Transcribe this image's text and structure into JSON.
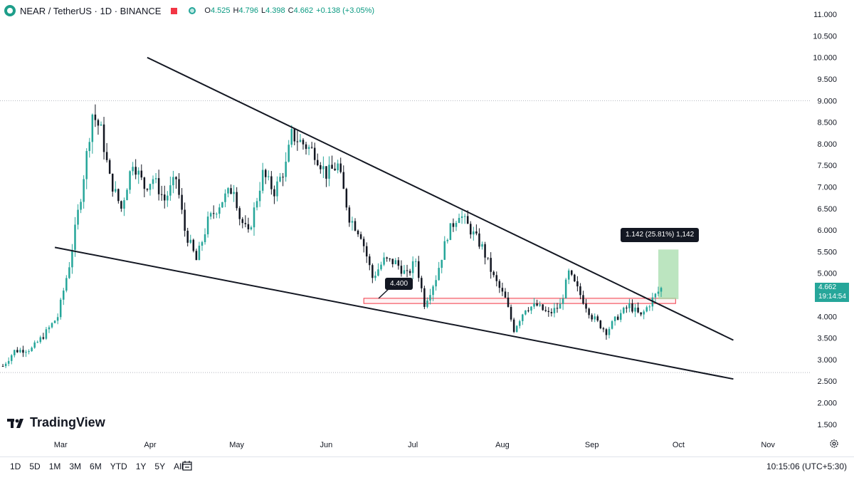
{
  "header": {
    "symbol": "NEAR / TetherUS · 1D · BINANCE",
    "open_label": "O",
    "open": "4.525",
    "high_label": "H",
    "high": "4.796",
    "low_label": "L",
    "low": "4.398",
    "close_label": "C",
    "close": "4.662",
    "change": "+0.138 (+3.05%)"
  },
  "colors": {
    "up": "#26a69a",
    "down": "#131722",
    "zone": "#f23645",
    "measure": "#a5dcab"
  },
  "brand": "TradingView",
  "price_tag": {
    "price": "4.662",
    "countdown": "19:14:54"
  },
  "annotations": {
    "measure_label": "1.142 (25.81%) 1,142",
    "support_label": "4.400"
  },
  "bottom_bar": {
    "ranges": [
      "1D",
      "5D",
      "1M",
      "3M",
      "6M",
      "YTD",
      "1Y",
      "5Y",
      "All"
    ],
    "clock": "10:15:06 (UTC+5:30)"
  },
  "chart_data": {
    "type": "candlestick",
    "y_axis": {
      "range": [
        1.2,
        11.2
      ],
      "ticks": [
        "11.000",
        "10.500",
        "10.000",
        "9.500",
        "9.000",
        "8.500",
        "8.000",
        "7.500",
        "7.000",
        "6.500",
        "6.000",
        "5.500",
        "5.000",
        "4.500",
        "4.000",
        "3.500",
        "3.000",
        "2.500",
        "2.000",
        "1.500"
      ],
      "tick_values": [
        11,
        10.5,
        10,
        9.5,
        9,
        8.5,
        8,
        7.5,
        7,
        6.5,
        6,
        5.5,
        5,
        4.5,
        4,
        3.5,
        3,
        2.5,
        2,
        1.5
      ]
    },
    "x_axis": {
      "range": [
        "2024-02-09",
        "2024-11-16"
      ],
      "ticks": [
        "Mar",
        "Apr",
        "May",
        "Jun",
        "Jul",
        "Aug",
        "Sep",
        "Oct",
        "Nov"
      ],
      "tick_dates": [
        "2024-03-01",
        "2024-04-01",
        "2024-05-01",
        "2024-06-01",
        "2024-07-01",
        "2024-08-01",
        "2024-09-01",
        "2024-10-01",
        "2024-11-01"
      ]
    },
    "key_points": [
      [
        "2024-02-10",
        2.85
      ],
      [
        "2024-02-14",
        3.2
      ],
      [
        "2024-02-20",
        3.25
      ],
      [
        "2024-02-24",
        3.55
      ],
      [
        "2024-02-29",
        4.0
      ],
      [
        "2024-03-04",
        5.2
      ],
      [
        "2024-03-08",
        6.8
      ],
      [
        "2024-03-12",
        8.7
      ],
      [
        "2024-03-15",
        8.3
      ],
      [
        "2024-03-18",
        7.2
      ],
      [
        "2024-03-22",
        6.5
      ],
      [
        "2024-03-26",
        7.6
      ],
      [
        "2024-03-30",
        7.0
      ],
      [
        "2024-04-02",
        7.2
      ],
      [
        "2024-04-06",
        6.7
      ],
      [
        "2024-04-10",
        7.2
      ],
      [
        "2024-04-13",
        6.0
      ],
      [
        "2024-04-17",
        5.3
      ],
      [
        "2024-04-21",
        6.2
      ],
      [
        "2024-04-26",
        6.7
      ],
      [
        "2024-04-30",
        7.0
      ],
      [
        "2024-05-02",
        6.3
      ],
      [
        "2024-05-05",
        5.9
      ],
      [
        "2024-05-10",
        7.3
      ],
      [
        "2024-05-14",
        6.9
      ],
      [
        "2024-05-18",
        7.5
      ],
      [
        "2024-05-20",
        8.2
      ],
      [
        "2024-05-24",
        8.0
      ],
      [
        "2024-05-28",
        7.8
      ],
      [
        "2024-06-01",
        7.3
      ],
      [
        "2024-06-05",
        7.5
      ],
      [
        "2024-06-09",
        6.3
      ],
      [
        "2024-06-13",
        5.9
      ],
      [
        "2024-06-17",
        4.9
      ],
      [
        "2024-06-21",
        5.3
      ],
      [
        "2024-06-25",
        5.25
      ],
      [
        "2024-06-29",
        4.95
      ],
      [
        "2024-07-02",
        5.3
      ],
      [
        "2024-07-05",
        4.3
      ],
      [
        "2024-07-09",
        4.9
      ],
      [
        "2024-07-13",
        5.9
      ],
      [
        "2024-07-17",
        6.4
      ],
      [
        "2024-07-21",
        6.0
      ],
      [
        "2024-07-25",
        5.6
      ],
      [
        "2024-07-29",
        4.9
      ],
      [
        "2024-08-02",
        4.4
      ],
      [
        "2024-08-05",
        3.7
      ],
      [
        "2024-08-09",
        4.2
      ],
      [
        "2024-08-13",
        4.25
      ],
      [
        "2024-08-17",
        4.05
      ],
      [
        "2024-08-21",
        4.25
      ],
      [
        "2024-08-24",
        5.0
      ],
      [
        "2024-08-28",
        4.5
      ],
      [
        "2024-09-01",
        4.0
      ],
      [
        "2024-09-06",
        3.65
      ],
      [
        "2024-09-10",
        4.0
      ],
      [
        "2024-09-14",
        4.25
      ],
      [
        "2024-09-18",
        4.0
      ],
      [
        "2024-09-22",
        4.4
      ],
      [
        "2024-09-25",
        4.66
      ]
    ],
    "trendlines": [
      {
        "name": "falling-resistance",
        "from": [
          "2024-03-31",
          10.0
        ],
        "to": [
          "2024-10-20",
          3.45
        ]
      },
      {
        "name": "falling-support",
        "from": [
          "2024-02-28",
          5.6
        ],
        "to": [
          "2024-10-20",
          2.55
        ]
      }
    ],
    "zone": {
      "from": "2024-06-14",
      "to": "2024-09-30",
      "low": 4.3,
      "high": 4.42
    },
    "measure": {
      "from": "2024-09-24",
      "to": "2024-10-01",
      "low": 4.4,
      "high": 5.55
    },
    "horizontal_lines": [
      9.0,
      2.7
    ],
    "last_price": 4.662
  }
}
